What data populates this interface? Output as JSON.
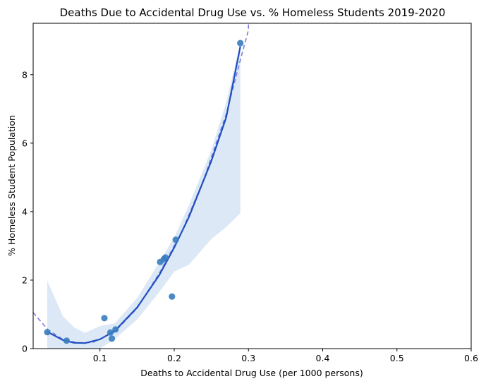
{
  "chart_data": {
    "type": "scatter",
    "title": "Deaths Due to Accidental Drug Use vs. % Homeless Students 2019-2020",
    "xlabel": "Deaths to Accidental Drug Use (per 1000 persons)",
    "ylabel": "% Homeless Student Population",
    "xlim": [
      0.01,
      0.6
    ],
    "ylim": [
      0,
      9.5
    ],
    "xticks": [
      0.1,
      0.2,
      0.3,
      0.4,
      0.5,
      0.6
    ],
    "xtick_labels": [
      "0.1",
      "0.2",
      "0.3",
      "0.4",
      "0.5",
      "0.6"
    ],
    "yticks": [
      0,
      2,
      4,
      6,
      8
    ],
    "ytick_labels": [
      "0",
      "2",
      "4",
      "6",
      "8"
    ],
    "grid": false,
    "points": {
      "x": [
        0.029,
        0.055,
        0.106,
        0.114,
        0.116,
        0.121,
        0.181,
        0.186,
        0.188,
        0.197,
        0.202,
        0.289
      ],
      "y": [
        0.48,
        0.23,
        0.89,
        0.47,
        0.29,
        0.56,
        2.53,
        2.61,
        2.66,
        1.52,
        3.18,
        8.92
      ]
    },
    "fit": {
      "name": "polynomial fit (order 2)",
      "x_range": [
        0.029,
        0.289
      ],
      "x_samples": [
        0.029,
        0.05,
        0.065,
        0.08,
        0.1,
        0.12,
        0.15,
        0.18,
        0.2,
        0.22,
        0.25,
        0.27,
        0.289
      ],
      "center": [
        0.49,
        0.25,
        0.17,
        0.16,
        0.27,
        0.52,
        1.2,
        2.15,
        2.95,
        3.85,
        5.48,
        6.75,
        8.82
      ],
      "ci_lower": [
        0.0,
        0.0,
        0.0,
        0.0,
        0.0,
        0.28,
        0.85,
        1.65,
        2.25,
        2.45,
        3.2,
        3.55,
        3.95
      ],
      "ci_upper": [
        1.98,
        0.95,
        0.62,
        0.46,
        0.66,
        0.74,
        1.48,
        2.52,
        3.25,
        4.2,
        5.8,
        7.2,
        8.92
      ]
    },
    "extrapolation": {
      "name": "dashed trend",
      "x_samples": [
        0.01,
        0.03,
        0.05,
        0.07,
        0.09,
        0.12,
        0.15,
        0.18,
        0.21,
        0.24,
        0.27,
        0.29,
        0.3,
        0.3
      ],
      "y": [
        1.05,
        0.55,
        0.27,
        0.17,
        0.18,
        0.49,
        1.18,
        2.2,
        3.4,
        4.95,
        6.85,
        8.5,
        9.3,
        9.5
      ]
    },
    "colors": {
      "points": "#3a7dbf",
      "fit": "#1f4fbf",
      "ci_band": "#dce8f5",
      "dashed": "#7b7be0",
      "axes": "#000000"
    }
  }
}
